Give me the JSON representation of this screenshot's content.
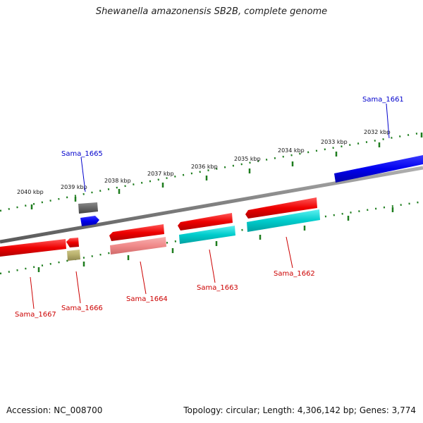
{
  "title": "Shewanella amazonensis SB2B, complete genome",
  "accession": "Accession: NC_008700",
  "topology": "Topology: circular; Length: 4,306,142 bp; Genes: 3,774",
  "colors": {
    "backbone": "#8a8a8a",
    "ticks": "#1e7d1e",
    "red": "#ee0000",
    "blue": "#0000ee",
    "cyan": "#00cccc",
    "pink": "#f08a8a",
    "gray": "#666666",
    "olive": "#b5ad6a",
    "label_red": "#cc0000",
    "label_blue": "#0000cc"
  },
  "kbp_labels": [
    "2040 kbp",
    "2039 kbp",
    "2038 kbp",
    "2037 kbp",
    "2036 kbp",
    "2035 kbp",
    "2034 kbp",
    "2033 kbp",
    "2032 kbp"
  ],
  "gene_labels": [
    "Sama_1661",
    "Sama_1662",
    "Sama_1663",
    "Sama_1664",
    "Sama_1665",
    "Sama_1666",
    "Sama_1667"
  ]
}
